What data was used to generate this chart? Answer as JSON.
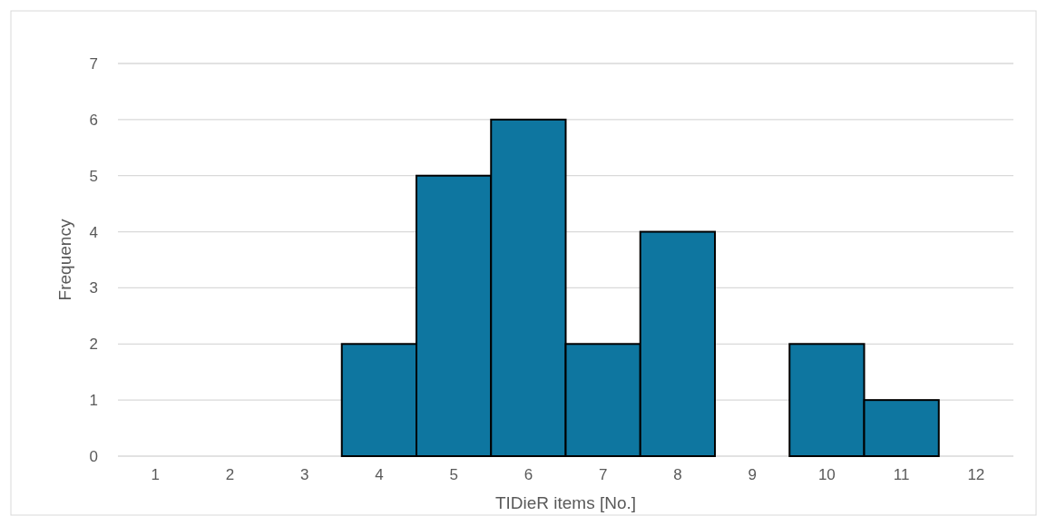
{
  "chart_data": {
    "type": "histogram",
    "xlabel": "TIDieR items [No.]",
    "ylabel": "Frequency",
    "bins": [
      0.5,
      1.5,
      2.5,
      3.5,
      4.5,
      5.5,
      6.5,
      7.5,
      8.5,
      9.5,
      10.5,
      11.5,
      12.5
    ],
    "values": [
      0,
      0,
      0,
      2,
      5,
      6,
      2,
      4,
      0,
      2,
      1,
      0
    ],
    "color": "#0e76a0",
    "xlim": [
      0.5,
      12.5
    ],
    "xticks": [
      1,
      2,
      3,
      4,
      5,
      6,
      7,
      8,
      9,
      10,
      11,
      12
    ],
    "ylim": [
      0,
      7
    ],
    "yticks": [
      0,
      1,
      2,
      3,
      4,
      5,
      6,
      7
    ],
    "grid": "y"
  }
}
